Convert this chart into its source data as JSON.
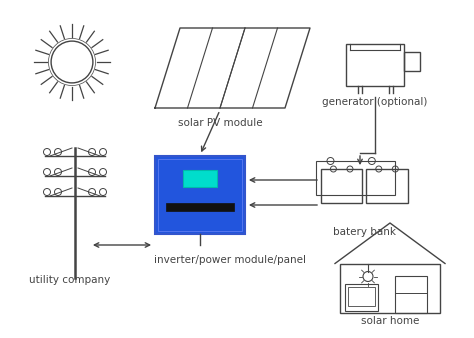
{
  "bg_color": "#ffffff",
  "line_color": "#444444",
  "blue_fill": "#2255dd",
  "cyan_fill": "#00ddcc",
  "labels": {
    "solar_pv": "solar PV module",
    "generator": "generator (optional)",
    "battery": "batery bank",
    "inverter": "inverter/power module/panel",
    "utility": "utility company",
    "home": "solar home"
  },
  "figsize": [
    4.74,
    3.38
  ],
  "dpi": 100
}
